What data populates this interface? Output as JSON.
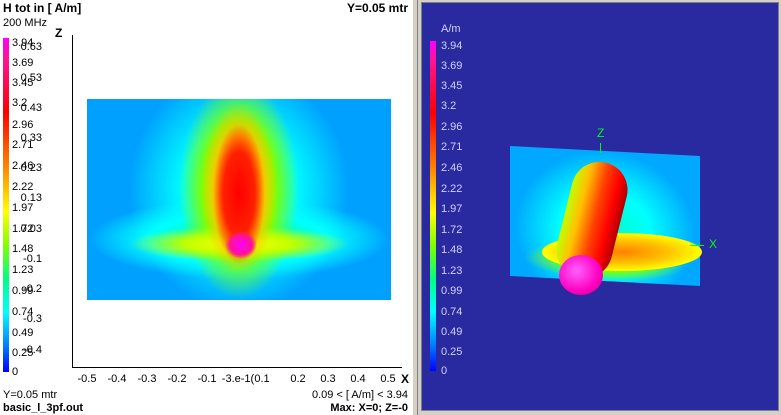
{
  "left_plot": {
    "title": "H tot in [ A/m]",
    "y_coord": "Y=0.05 mtr",
    "frequency": "200 MHz",
    "z_axis_label": "Z",
    "x_axis_label": "X",
    "colorbar_labels": [
      "3.94",
      "3.69",
      "3.45",
      "3.2",
      "2.96",
      "2.71",
      "2.46",
      "2.22",
      "1.97",
      "1.72",
      "1.48",
      "1.23",
      "0.99",
      "0.74",
      "0.49",
      "0.25",
      "0"
    ],
    "z_ticks": [
      "0.63",
      "0.53",
      "0.43",
      "0.33",
      "0.23",
      "0.13",
      "0.03",
      "-0.1",
      "-0.2",
      "-0.3",
      "-0.4"
    ],
    "x_ticks": [
      "-0.5",
      "-0.4",
      "-0.3",
      "-0.2",
      "-0.1",
      "-3.e-1(",
      "0.1",
      "0.2",
      "0.3",
      "0.4",
      "0.5"
    ],
    "footer_left_1": "Y=0.05 mtr",
    "footer_left_2": "basic_l_3pf.out",
    "footer_right_1": "0.09 < [ A/m] < 3.94",
    "footer_right_2": "Max: X=0; Z=-0"
  },
  "right_plot": {
    "unit": "A/m",
    "colorbar_labels": [
      "3.94",
      "3.69",
      "3.45",
      "3.2",
      "2.96",
      "2.71",
      "2.46",
      "2.22",
      "1.97",
      "1.72",
      "1.48",
      "1.23",
      "0.99",
      "0.74",
      "0.49",
      "0.25",
      "0"
    ],
    "z_axis_label": "Z",
    "x_axis_label": "X"
  },
  "colors": {
    "right_background": "#2a2aa0",
    "axis_green": "#00ff00"
  }
}
